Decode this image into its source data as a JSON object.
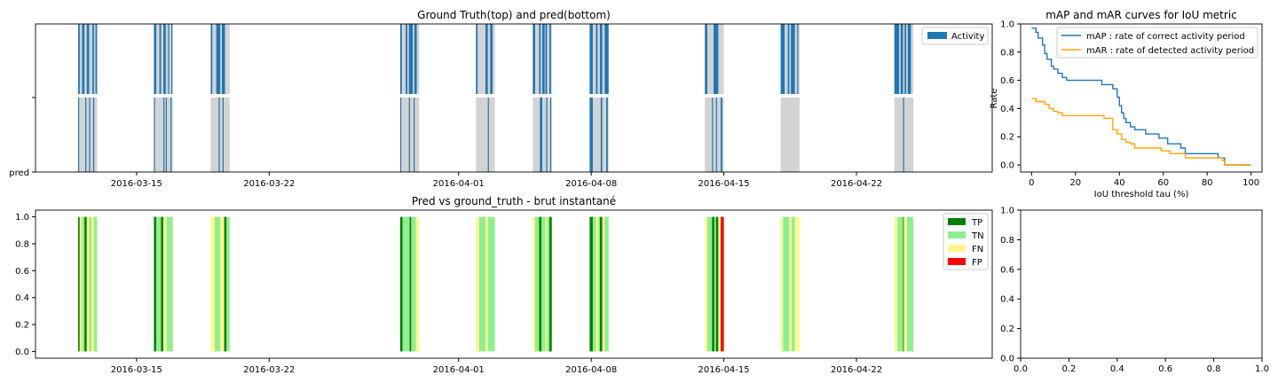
{
  "colors": {
    "activity_blue": "#1f77b4",
    "period_gray": "#d3d3d3",
    "map_line": "#1f77b4",
    "mar_line": "#ffa500",
    "tp": "#008000",
    "tn": "#90ee90",
    "fn": "#fff68f",
    "fp": "#ff0000"
  },
  "chart_data": [
    {
      "type": "bar",
      "title": "Ground Truth(top) and pred(bottom)",
      "x_axis": "date",
      "xlim": [
        "2016-03-09T16:00",
        "2016-04-29T04:00"
      ],
      "xticks": [
        "2016-03-15",
        "2016-03-22",
        "2016-04-01",
        "2016-04-08",
        "2016-04-15",
        "2016-04-22"
      ],
      "ytick_labels": [
        "",
        "pred"
      ],
      "legend": {
        "position": "upper-right",
        "entries": [
          "Activity"
        ]
      },
      "periods": [
        [
          "2016-03-11T22:00",
          "2016-03-12T22:00"
        ],
        [
          "2016-03-15T22:00",
          "2016-03-16T22:00"
        ],
        [
          "2016-03-18T22:00",
          "2016-03-19T22:00"
        ],
        [
          "2016-03-28T22:00",
          "2016-03-29T22:00"
        ],
        [
          "2016-04-01T22:00",
          "2016-04-02T22:00"
        ],
        [
          "2016-04-04T22:00",
          "2016-04-05T22:00"
        ],
        [
          "2016-04-07T22:00",
          "2016-04-08T22:00"
        ],
        [
          "2016-04-14T00:00",
          "2016-04-15T00:00"
        ],
        [
          "2016-04-18T00:00",
          "2016-04-19T00:00"
        ],
        [
          "2016-04-24T00:00",
          "2016-04-25T00:00"
        ]
      ],
      "ground_truth_activity": [
        [
          "2016-03-11T22:00",
          "2016-03-12T00:00"
        ],
        [
          "2016-03-12T03:00",
          "2016-03-12T06:00"
        ],
        [
          "2016-03-12T09:00",
          "2016-03-12T12:00"
        ],
        [
          "2016-03-12T16:00",
          "2016-03-12T18:00"
        ],
        [
          "2016-03-12T20:00",
          "2016-03-12T22:00"
        ],
        [
          "2016-03-15T22:00",
          "2016-03-16T01:00"
        ],
        [
          "2016-03-16T05:00",
          "2016-03-16T07:00"
        ],
        [
          "2016-03-16T10:00",
          "2016-03-16T13:00"
        ],
        [
          "2016-03-16T16:00",
          "2016-03-16T17:00"
        ],
        [
          "2016-03-16T20:00",
          "2016-03-16T21:00"
        ],
        [
          "2016-03-18T22:00",
          "2016-03-19T00:00"
        ],
        [
          "2016-03-19T05:00",
          "2016-03-19T10:00"
        ],
        [
          "2016-03-19T12:00",
          "2016-03-19T16:00"
        ],
        [
          "2016-03-28T22:00",
          "2016-03-29T00:00"
        ],
        [
          "2016-03-29T05:00",
          "2016-03-29T07:00"
        ],
        [
          "2016-03-29T09:00",
          "2016-03-29T14:00"
        ],
        [
          "2016-03-29T16:00",
          "2016-03-29T19:00"
        ],
        [
          "2016-04-01T22:00",
          "2016-04-02T00:00"
        ],
        [
          "2016-04-02T10:00",
          "2016-04-02T13:00"
        ],
        [
          "2016-04-02T16:00",
          "2016-04-02T19:00"
        ],
        [
          "2016-04-04T22:00",
          "2016-04-05T01:00"
        ],
        [
          "2016-04-05T06:00",
          "2016-04-05T08:00"
        ],
        [
          "2016-04-05T10:00",
          "2016-04-05T13:00"
        ],
        [
          "2016-04-05T14:00",
          "2016-04-05T16:00"
        ],
        [
          "2016-04-05T19:00",
          "2016-04-05T21:00"
        ],
        [
          "2016-04-07T22:00",
          "2016-04-08T02:00"
        ],
        [
          "2016-04-08T06:00",
          "2016-04-08T08:00"
        ],
        [
          "2016-04-08T11:00",
          "2016-04-08T14:00"
        ],
        [
          "2016-04-08T17:00",
          "2016-04-08T22:00"
        ],
        [
          "2016-04-14T00:00",
          "2016-04-14T03:00"
        ],
        [
          "2016-04-14T11:00",
          "2016-04-14T17:00"
        ],
        [
          "2016-04-18T00:00",
          "2016-04-18T05:00"
        ],
        [
          "2016-04-18T09:00",
          "2016-04-18T11:00"
        ],
        [
          "2016-04-18T13:00",
          "2016-04-18T18:00"
        ],
        [
          "2016-04-18T21:00",
          "2016-04-18T22:00"
        ],
        [
          "2016-04-24T00:00",
          "2016-04-24T06:00"
        ],
        [
          "2016-04-24T08:00",
          "2016-04-24T11:00"
        ],
        [
          "2016-04-24T13:00",
          "2016-04-24T15:00"
        ],
        [
          "2016-04-24T17:00",
          "2016-04-24T21:00"
        ]
      ],
      "predicted_activity": [
        [
          "2016-03-11T22:00",
          "2016-03-11T23:00"
        ],
        [
          "2016-03-12T07:00",
          "2016-03-12T08:00"
        ],
        [
          "2016-03-12T12:00",
          "2016-03-12T13:00"
        ],
        [
          "2016-03-12T17:00",
          "2016-03-12T18:00"
        ],
        [
          "2016-03-15T22:00",
          "2016-03-15T23:00"
        ],
        [
          "2016-03-16T10:00",
          "2016-03-16T11:00"
        ],
        [
          "2016-03-16T13:00",
          "2016-03-16T14:00"
        ],
        [
          "2016-03-16T19:00",
          "2016-03-16T20:00"
        ],
        [
          "2016-03-19T08:00",
          "2016-03-19T09:00"
        ],
        [
          "2016-03-19T13:00",
          "2016-03-19T14:00"
        ],
        [
          "2016-03-28T22:00",
          "2016-03-28T23:00"
        ],
        [
          "2016-03-29T09:00",
          "2016-03-29T10:00"
        ],
        [
          "2016-03-29T15:00",
          "2016-03-29T16:00"
        ],
        [
          "2016-04-02T13:00",
          "2016-04-02T14:00"
        ],
        [
          "2016-04-05T07:00",
          "2016-04-05T10:00"
        ],
        [
          "2016-04-05T15:00",
          "2016-04-05T16:00"
        ],
        [
          "2016-04-05T20:00",
          "2016-04-05T21:00"
        ],
        [
          "2016-04-07T22:00",
          "2016-04-08T02:00"
        ],
        [
          "2016-04-08T12:00",
          "2016-04-08T14:00"
        ],
        [
          "2016-04-08T19:00",
          "2016-04-08T21:00"
        ],
        [
          "2016-04-14T09:00",
          "2016-04-14T10:00"
        ],
        [
          "2016-04-14T14:00",
          "2016-04-14T15:00"
        ],
        [
          "2016-04-14T20:00",
          "2016-04-14T22:00"
        ],
        [
          "2016-04-24T11:00",
          "2016-04-24T12:00"
        ]
      ]
    },
    {
      "type": "line",
      "title": "mAP and mAR curves for IoU metric",
      "xlabel": "IoU threshold tau (%)",
      "ylabel": "Rate",
      "xlim": [
        -5,
        105
      ],
      "ylim": [
        -0.05,
        1.0
      ],
      "xticks": [
        0,
        20,
        40,
        60,
        80,
        100
      ],
      "yticks": [
        0.0,
        0.2,
        0.4,
        0.6,
        0.8,
        1.0
      ],
      "legend": {
        "position": "upper-right"
      },
      "series": [
        {
          "name": "mAP : rate of correct activity period",
          "points": [
            [
              0,
              0.97
            ],
            [
              1,
              0.97
            ],
            [
              2,
              0.94
            ],
            [
              3,
              0.9
            ],
            [
              5,
              0.85
            ],
            [
              6,
              0.79
            ],
            [
              7,
              0.75
            ],
            [
              9,
              0.7
            ],
            [
              10,
              0.68
            ],
            [
              12,
              0.65
            ],
            [
              14,
              0.62
            ],
            [
              16,
              0.6
            ],
            [
              19,
              0.6
            ],
            [
              31,
              0.6
            ],
            [
              32,
              0.57
            ],
            [
              36,
              0.57
            ],
            [
              37,
              0.54
            ],
            [
              39,
              0.48
            ],
            [
              40,
              0.42
            ],
            [
              41,
              0.37
            ],
            [
              42,
              0.33
            ],
            [
              43,
              0.3
            ],
            [
              45,
              0.27
            ],
            [
              47,
              0.25
            ],
            [
              49,
              0.25
            ],
            [
              50,
              0.25
            ],
            [
              52,
              0.22
            ],
            [
              57,
              0.22
            ],
            [
              58,
              0.19
            ],
            [
              61,
              0.19
            ],
            [
              62,
              0.15
            ],
            [
              67,
              0.15
            ],
            [
              68,
              0.12
            ],
            [
              70,
              0.08
            ],
            [
              84,
              0.08
            ],
            [
              85,
              0.05
            ],
            [
              87,
              0.05
            ],
            [
              88,
              0.0
            ],
            [
              100,
              0.0
            ]
          ]
        },
        {
          "name": "mAR : rate of detected activity period",
          "points": [
            [
              0,
              0.47
            ],
            [
              1,
              0.47
            ],
            [
              2,
              0.45
            ],
            [
              5,
              0.45
            ],
            [
              6,
              0.43
            ],
            [
              8,
              0.4
            ],
            [
              10,
              0.38
            ],
            [
              12,
              0.37
            ],
            [
              14,
              0.35
            ],
            [
              32,
              0.35
            ],
            [
              33,
              0.33
            ],
            [
              36,
              0.33
            ],
            [
              37,
              0.25
            ],
            [
              39,
              0.22
            ],
            [
              41,
              0.18
            ],
            [
              43,
              0.16
            ],
            [
              45,
              0.15
            ],
            [
              47,
              0.12
            ],
            [
              58,
              0.12
            ],
            [
              59,
              0.1
            ],
            [
              62,
              0.1
            ],
            [
              63,
              0.08
            ],
            [
              69,
              0.08
            ],
            [
              70,
              0.05
            ],
            [
              86,
              0.05
            ],
            [
              87,
              0.03
            ],
            [
              88,
              0.0
            ],
            [
              100,
              0.0
            ]
          ]
        }
      ]
    },
    {
      "type": "bar",
      "title": "Pred vs ground_truth - brut instantané",
      "x_axis": "date",
      "xlim": [
        "2016-03-09T16:00",
        "2016-04-29T04:00"
      ],
      "xticks": [
        "2016-03-15",
        "2016-03-22",
        "2016-04-01",
        "2016-04-08",
        "2016-04-15",
        "2016-04-22"
      ],
      "ylim": [
        -0.05,
        1.05
      ],
      "yticks": [
        0.0,
        0.2,
        0.4,
        0.6,
        0.8,
        1.0
      ],
      "legend": {
        "position": "upper-right",
        "entries": [
          "TP",
          "TN",
          "FN",
          "FP"
        ]
      },
      "segments": [
        {
          "start": "2016-03-11T22:00",
          "end": "2016-03-12T00:00",
          "label": "TP"
        },
        {
          "start": "2016-03-12T00:00",
          "end": "2016-03-12T03:00",
          "label": "FN"
        },
        {
          "start": "2016-03-12T03:00",
          "end": "2016-03-12T06:00",
          "label": "TN"
        },
        {
          "start": "2016-03-12T06:00",
          "end": "2016-03-12T09:00",
          "label": "TP"
        },
        {
          "start": "2016-03-12T09:00",
          "end": "2016-03-12T12:00",
          "label": "FN"
        },
        {
          "start": "2016-03-12T12:00",
          "end": "2016-03-12T15:00",
          "label": "TN"
        },
        {
          "start": "2016-03-12T15:00",
          "end": "2016-03-12T18:00",
          "label": "FN"
        },
        {
          "start": "2016-03-12T18:00",
          "end": "2016-03-12T22:00",
          "label": "TN"
        },
        {
          "start": "2016-03-15T22:00",
          "end": "2016-03-16T01:00",
          "label": "TP"
        },
        {
          "start": "2016-03-16T01:00",
          "end": "2016-03-16T07:00",
          "label": "TN"
        },
        {
          "start": "2016-03-16T07:00",
          "end": "2016-03-16T10:00",
          "label": "TP"
        },
        {
          "start": "2016-03-16T10:00",
          "end": "2016-03-16T14:00",
          "label": "FN"
        },
        {
          "start": "2016-03-16T14:00",
          "end": "2016-03-16T22:00",
          "label": "TN"
        },
        {
          "start": "2016-03-18T22:00",
          "end": "2016-03-19T03:00",
          "label": "FN"
        },
        {
          "start": "2016-03-19T03:00",
          "end": "2016-03-19T10:00",
          "label": "TN"
        },
        {
          "start": "2016-03-19T10:00",
          "end": "2016-03-19T15:00",
          "label": "FN"
        },
        {
          "start": "2016-03-19T15:00",
          "end": "2016-03-19T18:00",
          "label": "TP"
        },
        {
          "start": "2016-03-19T18:00",
          "end": "2016-03-19T22:00",
          "label": "TN"
        },
        {
          "start": "2016-03-28T22:00",
          "end": "2016-03-29T01:00",
          "label": "TP"
        },
        {
          "start": "2016-03-29T01:00",
          "end": "2016-03-29T10:00",
          "label": "TN"
        },
        {
          "start": "2016-03-29T10:00",
          "end": "2016-03-29T12:00",
          "label": "TP"
        },
        {
          "start": "2016-03-29T12:00",
          "end": "2016-03-29T18:00",
          "label": "TN"
        },
        {
          "start": "2016-03-29T18:00",
          "end": "2016-03-29T22:00",
          "label": "FN"
        },
        {
          "start": "2016-04-01T22:00",
          "end": "2016-04-02T02:00",
          "label": "FN"
        },
        {
          "start": "2016-04-02T02:00",
          "end": "2016-04-02T10:00",
          "label": "TN"
        },
        {
          "start": "2016-04-02T10:00",
          "end": "2016-04-02T13:00",
          "label": "FN"
        },
        {
          "start": "2016-04-02T13:00",
          "end": "2016-04-02T22:00",
          "label": "TN"
        },
        {
          "start": "2016-04-04T22:00",
          "end": "2016-04-05T01:00",
          "label": "FN"
        },
        {
          "start": "2016-04-05T01:00",
          "end": "2016-04-05T06:00",
          "label": "TN"
        },
        {
          "start": "2016-04-05T06:00",
          "end": "2016-04-05T09:00",
          "label": "TP"
        },
        {
          "start": "2016-04-05T09:00",
          "end": "2016-04-05T14:00",
          "label": "TN"
        },
        {
          "start": "2016-04-05T14:00",
          "end": "2016-04-05T16:00",
          "label": "FN"
        },
        {
          "start": "2016-04-05T16:00",
          "end": "2016-04-05T19:00",
          "label": "TN"
        },
        {
          "start": "2016-04-05T19:00",
          "end": "2016-04-05T22:00",
          "label": "TP"
        },
        {
          "start": "2016-04-07T22:00",
          "end": "2016-04-08T02:00",
          "label": "TP"
        },
        {
          "start": "2016-04-08T02:00",
          "end": "2016-04-08T06:00",
          "label": "TN"
        },
        {
          "start": "2016-04-08T06:00",
          "end": "2016-04-08T09:00",
          "label": "FN"
        },
        {
          "start": "2016-04-08T09:00",
          "end": "2016-04-08T11:00",
          "label": "TN"
        },
        {
          "start": "2016-04-08T11:00",
          "end": "2016-04-08T14:00",
          "label": "TP"
        },
        {
          "start": "2016-04-08T14:00",
          "end": "2016-04-08T17:00",
          "label": "FN"
        },
        {
          "start": "2016-04-08T17:00",
          "end": "2016-04-08T22:00",
          "label": "TN"
        },
        {
          "start": "2016-04-14T00:00",
          "end": "2016-04-14T03:00",
          "label": "FN"
        },
        {
          "start": "2016-04-14T03:00",
          "end": "2016-04-14T09:00",
          "label": "TN"
        },
        {
          "start": "2016-04-14T09:00",
          "end": "2016-04-14T12:00",
          "label": "TP"
        },
        {
          "start": "2016-04-14T12:00",
          "end": "2016-04-14T14:00",
          "label": "TN"
        },
        {
          "start": "2016-04-14T14:00",
          "end": "2016-04-14T17:00",
          "label": "TP"
        },
        {
          "start": "2016-04-14T17:00",
          "end": "2016-04-14T20:00",
          "label": "FN"
        },
        {
          "start": "2016-04-14T20:00",
          "end": "2016-04-15T00:00",
          "label": "FP"
        },
        {
          "start": "2016-04-18T00:00",
          "end": "2016-04-18T03:00",
          "label": "FN"
        },
        {
          "start": "2016-04-18T03:00",
          "end": "2016-04-18T11:00",
          "label": "TN"
        },
        {
          "start": "2016-04-18T11:00",
          "end": "2016-04-18T14:00",
          "label": "FN"
        },
        {
          "start": "2016-04-18T14:00",
          "end": "2016-04-18T18:00",
          "label": "TN"
        },
        {
          "start": "2016-04-18T18:00",
          "end": "2016-04-19T00:00",
          "label": "FN"
        },
        {
          "start": "2016-04-24T00:00",
          "end": "2016-04-24T04:00",
          "label": "FN"
        },
        {
          "start": "2016-04-24T04:00",
          "end": "2016-04-24T11:00",
          "label": "TN"
        },
        {
          "start": "2016-04-24T11:00",
          "end": "2016-04-24T12:00",
          "label": "TP"
        },
        {
          "start": "2016-04-24T12:00",
          "end": "2016-04-24T16:00",
          "label": "FN"
        },
        {
          "start": "2016-04-24T16:00",
          "end": "2016-04-25T00:00",
          "label": "TN"
        }
      ]
    },
    {
      "type": "empty",
      "xlim": [
        0.0,
        1.0
      ],
      "ylim": [
        0.0,
        1.0
      ],
      "xticks": [
        0.0,
        0.2,
        0.4,
        0.6,
        0.8,
        1.0
      ],
      "yticks": [
        0.0,
        0.2,
        0.4,
        0.6,
        0.8,
        1.0
      ]
    }
  ]
}
